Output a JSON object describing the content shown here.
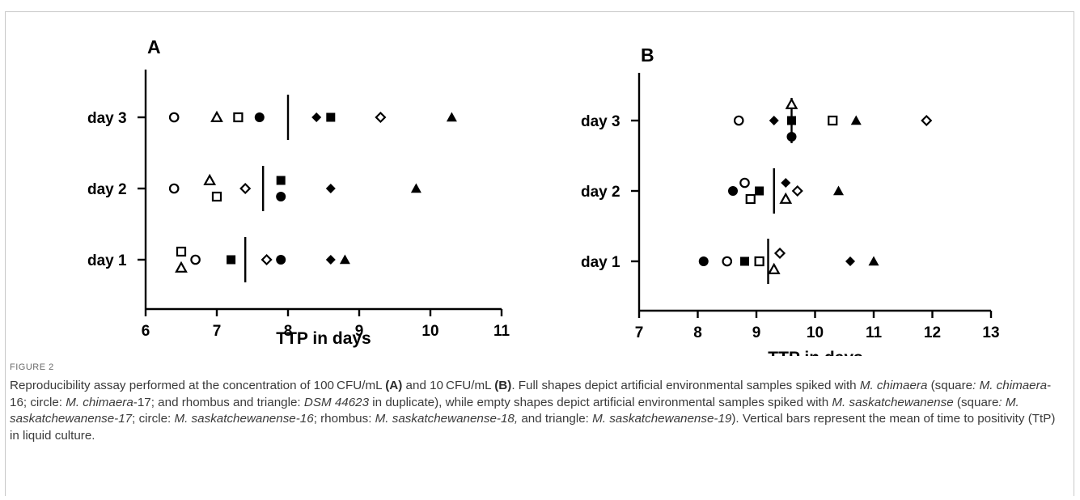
{
  "chart_data": [
    {
      "panel_label": "A",
      "type": "scatter",
      "xlabel": "TTP in days",
      "xlim": [
        6,
        11
      ],
      "xticks": [
        6,
        7,
        8,
        9,
        10,
        11
      ],
      "categories": [
        "day 1",
        "day 2",
        "day 3"
      ],
      "legend": {
        "square_filled": "M. chimaera-16",
        "circle_filled": "M. chimaera-17",
        "rhombus_filled": "DSM 44623",
        "triangle_filled": "DSM 44623",
        "square_open": "M. saskatchewanense-17",
        "circle_open": "M. saskatchewanense-16",
        "rhombus_open": "M. saskatchewanense-18",
        "triangle_open": "M. saskatchewanense-19"
      },
      "points": [
        {
          "cat": "day 3",
          "x": 6.4,
          "marker": "circle",
          "filled": false
        },
        {
          "cat": "day 3",
          "x": 7.0,
          "marker": "triangle",
          "filled": false
        },
        {
          "cat": "day 3",
          "x": 7.3,
          "marker": "square",
          "filled": false
        },
        {
          "cat": "day 3",
          "x": 7.6,
          "marker": "circle",
          "filled": true
        },
        {
          "cat": "day 3",
          "x": 8.4,
          "marker": "rhombus",
          "filled": true
        },
        {
          "cat": "day 3",
          "x": 8.6,
          "marker": "square",
          "filled": true
        },
        {
          "cat": "day 3",
          "x": 9.3,
          "marker": "rhombus",
          "filled": false
        },
        {
          "cat": "day 3",
          "x": 10.3,
          "marker": "triangle",
          "filled": true
        },
        {
          "cat": "day 2",
          "x": 6.4,
          "marker": "circle",
          "filled": false
        },
        {
          "cat": "day 2",
          "x": 6.9,
          "marker": "triangle",
          "filled": false,
          "jitter": 1
        },
        {
          "cat": "day 2",
          "x": 7.0,
          "marker": "square",
          "filled": false,
          "jitter": -1
        },
        {
          "cat": "day 2",
          "x": 7.4,
          "marker": "rhombus",
          "filled": false
        },
        {
          "cat": "day 2",
          "x": 7.9,
          "marker": "square",
          "filled": true,
          "jitter": 1
        },
        {
          "cat": "day 2",
          "x": 7.9,
          "marker": "circle",
          "filled": true,
          "jitter": -1
        },
        {
          "cat": "day 2",
          "x": 8.6,
          "marker": "rhombus",
          "filled": true
        },
        {
          "cat": "day 2",
          "x": 9.8,
          "marker": "triangle",
          "filled": true
        },
        {
          "cat": "day 1",
          "x": 6.5,
          "marker": "square",
          "filled": false,
          "jitter": 1
        },
        {
          "cat": "day 1",
          "x": 6.5,
          "marker": "triangle",
          "filled": false,
          "jitter": -1
        },
        {
          "cat": "day 1",
          "x": 6.7,
          "marker": "circle",
          "filled": false
        },
        {
          "cat": "day 1",
          "x": 7.2,
          "marker": "square",
          "filled": true
        },
        {
          "cat": "day 1",
          "x": 7.7,
          "marker": "rhombus",
          "filled": false
        },
        {
          "cat": "day 1",
          "x": 7.9,
          "marker": "circle",
          "filled": true
        },
        {
          "cat": "day 1",
          "x": 8.6,
          "marker": "rhombus",
          "filled": true
        },
        {
          "cat": "day 1",
          "x": 8.8,
          "marker": "triangle",
          "filled": true
        }
      ],
      "means": [
        {
          "cat": "day 3",
          "x": 8.0
        },
        {
          "cat": "day 2",
          "x": 7.65
        },
        {
          "cat": "day 1",
          "x": 7.4
        }
      ]
    },
    {
      "panel_label": "B",
      "type": "scatter",
      "xlabel": "TTP in days",
      "xlim": [
        7,
        13
      ],
      "xticks": [
        7,
        8,
        9,
        10,
        11,
        12,
        13
      ],
      "categories": [
        "day 1",
        "day 2",
        "day 3"
      ],
      "points": [
        {
          "cat": "day 3",
          "x": 8.7,
          "marker": "circle",
          "filled": false
        },
        {
          "cat": "day 3",
          "x": 9.3,
          "marker": "rhombus",
          "filled": true
        },
        {
          "cat": "day 3",
          "x": 9.6,
          "marker": "triangle",
          "filled": false,
          "jitter": 2
        },
        {
          "cat": "day 3",
          "x": 9.6,
          "marker": "square",
          "filled": true
        },
        {
          "cat": "day 3",
          "x": 9.6,
          "marker": "circle",
          "filled": true,
          "jitter": -2
        },
        {
          "cat": "day 3",
          "x": 10.3,
          "marker": "square",
          "filled": false
        },
        {
          "cat": "day 3",
          "x": 10.7,
          "marker": "triangle",
          "filled": true
        },
        {
          "cat": "day 3",
          "x": 11.9,
          "marker": "rhombus",
          "filled": false
        },
        {
          "cat": "day 2",
          "x": 8.6,
          "marker": "circle",
          "filled": true
        },
        {
          "cat": "day 2",
          "x": 8.8,
          "marker": "circle",
          "filled": false,
          "jitter": 1
        },
        {
          "cat": "day 2",
          "x": 8.9,
          "marker": "square",
          "filled": false,
          "jitter": -1
        },
        {
          "cat": "day 2",
          "x": 9.05,
          "marker": "square",
          "filled": true
        },
        {
          "cat": "day 2",
          "x": 9.5,
          "marker": "rhombus",
          "filled": true,
          "jitter": 1
        },
        {
          "cat": "day 2",
          "x": 9.5,
          "marker": "triangle",
          "filled": false,
          "jitter": -1
        },
        {
          "cat": "day 2",
          "x": 9.7,
          "marker": "rhombus",
          "filled": false
        },
        {
          "cat": "day 2",
          "x": 10.4,
          "marker": "triangle",
          "filled": true
        },
        {
          "cat": "day 1",
          "x": 8.1,
          "marker": "circle",
          "filled": true
        },
        {
          "cat": "day 1",
          "x": 8.5,
          "marker": "circle",
          "filled": false
        },
        {
          "cat": "day 1",
          "x": 8.8,
          "marker": "square",
          "filled": true
        },
        {
          "cat": "day 1",
          "x": 9.05,
          "marker": "square",
          "filled": false
        },
        {
          "cat": "day 1",
          "x": 9.3,
          "marker": "triangle",
          "filled": false,
          "jitter": -1
        },
        {
          "cat": "day 1",
          "x": 9.4,
          "marker": "rhombus",
          "filled": false,
          "jitter": 1
        },
        {
          "cat": "day 1",
          "x": 10.6,
          "marker": "rhombus",
          "filled": true
        },
        {
          "cat": "day 1",
          "x": 11.0,
          "marker": "triangle",
          "filled": true
        }
      ],
      "means": [
        {
          "cat": "day 3",
          "x": 9.6
        },
        {
          "cat": "day 2",
          "x": 9.3
        },
        {
          "cat": "day 1",
          "x": 9.2
        }
      ]
    }
  ],
  "caption": {
    "label": "FIGURE 2",
    "segments": [
      {
        "t": "Reproducibility assay performed at the concentration of 100 CFU/mL "
      },
      {
        "t": "(A)",
        "b": true
      },
      {
        "t": " and 10 CFU/mL "
      },
      {
        "t": "(B)",
        "b": true
      },
      {
        "t": ". Full shapes depict artificial environmental samples spiked with "
      },
      {
        "t": "M. chimaera",
        "i": true
      },
      {
        "t": " (square"
      },
      {
        "t": ": M. chimaera",
        "i": true
      },
      {
        "t": "-16; circle: "
      },
      {
        "t": "M. chimaera",
        "i": true
      },
      {
        "t": "-17; and rhombus and triangle: "
      },
      {
        "t": "DSM 44623",
        "i": true
      },
      {
        "t": " in duplicate), while empty shapes depict artificial environmental samples spiked with "
      },
      {
        "t": "M. saskatchewanense",
        "i": true
      },
      {
        "t": " (square"
      },
      {
        "t": ": M. saskatchewanense-17",
        "i": true
      },
      {
        "t": "; circle: "
      },
      {
        "t": "M. saskatchewanense-16",
        "i": true
      },
      {
        "t": "; rhombus: "
      },
      {
        "t": "M. saskatchewanense-18,",
        "i": true
      },
      {
        "t": " and triangle: "
      },
      {
        "t": "M. saskatchewanense-19",
        "i": true
      },
      {
        "t": "). Vertical bars represent the mean of time to positivity (TtP) in liquid culture."
      }
    ]
  }
}
